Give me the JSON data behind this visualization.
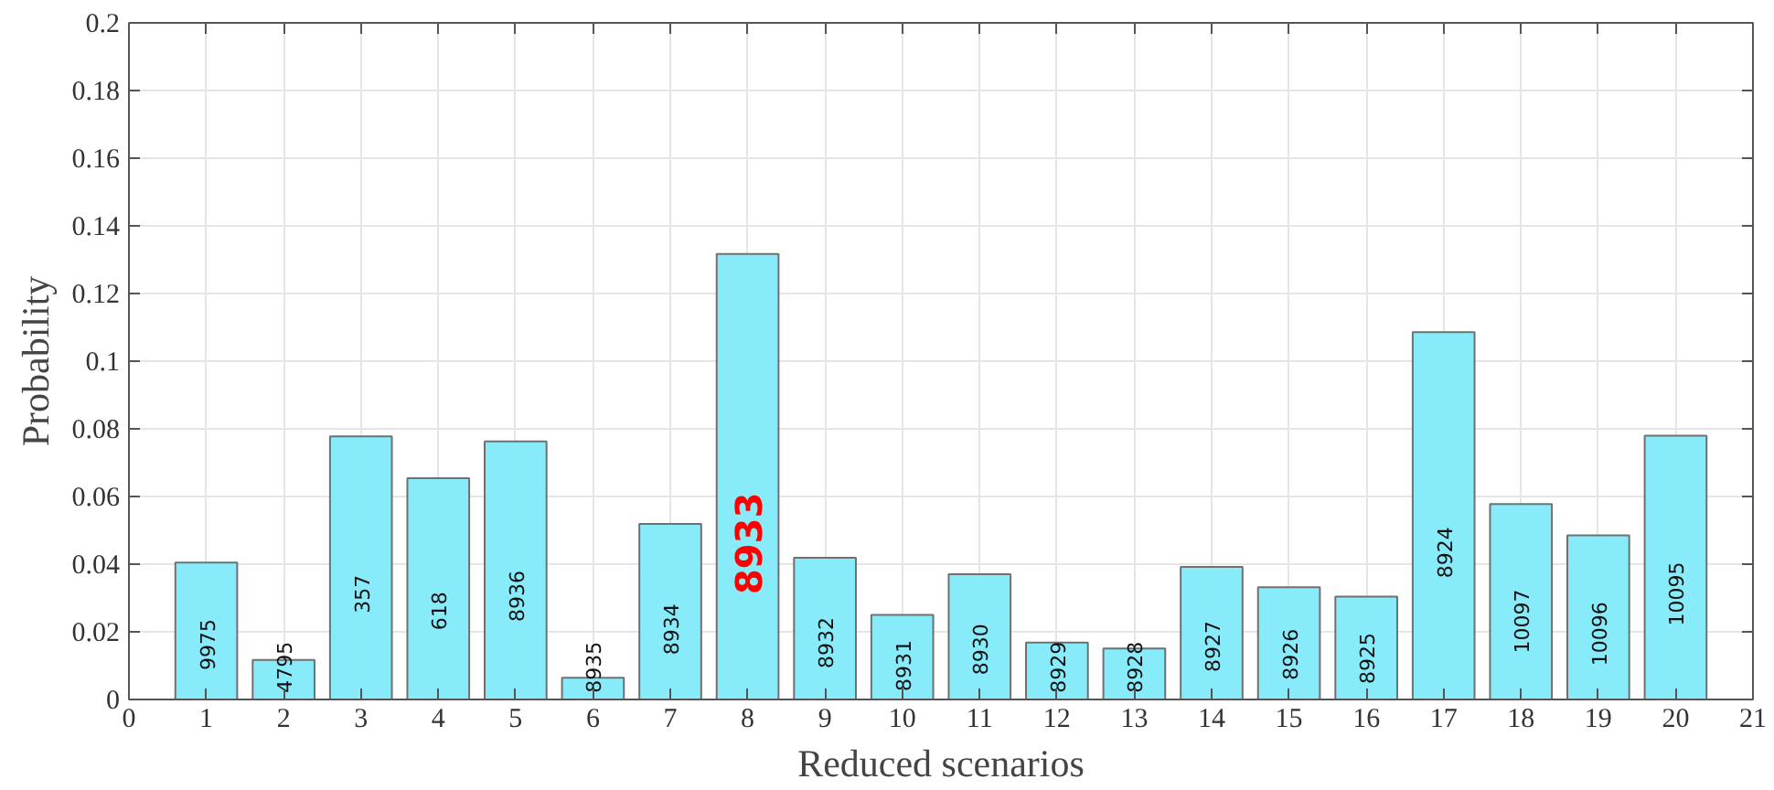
{
  "chart_data": {
    "type": "bar",
    "xlabel": "Reduced scenarios",
    "ylabel": "Probability",
    "x": [
      1,
      2,
      3,
      4,
      5,
      6,
      7,
      8,
      9,
      10,
      11,
      12,
      13,
      14,
      15,
      16,
      17,
      18,
      19,
      20
    ],
    "values": [
      0.0405,
      0.0117,
      0.0778,
      0.0654,
      0.0763,
      0.0064,
      0.0519,
      0.1317,
      0.0419,
      0.025,
      0.037,
      0.0168,
      0.0151,
      0.0392,
      0.0332,
      0.0304,
      0.1086,
      0.0578,
      0.0485,
      0.078
    ],
    "color": "#87ebfa",
    "annotations": [
      "9975",
      "4795",
      "357",
      "618",
      "8936",
      "8935",
      "8934",
      "8933",
      "8932",
      "8931",
      "8930",
      "8929",
      "8928",
      "8927",
      "8926",
      "8925",
      "8924",
      "10097",
      "10096",
      "10095"
    ],
    "xlim": [
      0,
      21
    ],
    "xticks": [
      0,
      1,
      2,
      3,
      4,
      5,
      6,
      7,
      8,
      9,
      10,
      11,
      12,
      13,
      14,
      15,
      16,
      17,
      18,
      19,
      20,
      21
    ],
    "ylim": [
      0,
      0.2
    ],
    "yticks": [
      0,
      0.02,
      0.04,
      0.06,
      0.08,
      0.1,
      0.12,
      0.14,
      0.16,
      0.18,
      0.2
    ],
    "grid": true
  }
}
